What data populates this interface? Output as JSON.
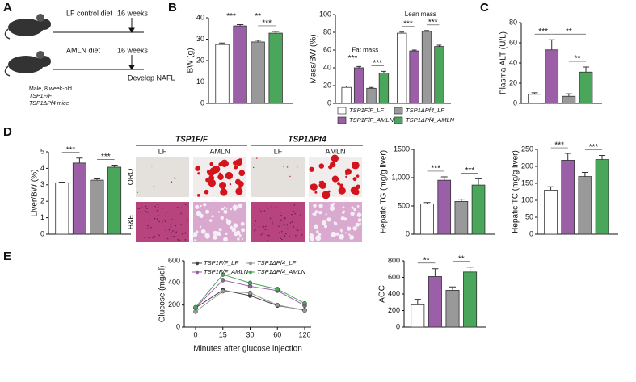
{
  "panel_labels": [
    "A",
    "B",
    "C",
    "D",
    "E"
  ],
  "schematic": {
    "lf_diet": "LF control diet",
    "lf_duration": "16 weeks",
    "amln_diet": "AMLN diet",
    "amln_duration": "16 weeks",
    "outcome": "Develop NAFL",
    "mice": [
      "Male, 8 week-old",
      "TSP1F/F",
      "TSP1ΔPf4 mice"
    ]
  },
  "histology": {
    "genotypes": [
      "TSP1F/F",
      "TSP1ΔPf4"
    ],
    "diets": [
      "LF",
      "AMLN",
      "LF",
      "AMLN"
    ],
    "stains": [
      "ORO",
      "H&E"
    ]
  },
  "chart_data": [
    {
      "type": "bar",
      "ylabel": "BW (g)",
      "ylim": [
        0,
        40
      ],
      "yticks": [
        0,
        10,
        20,
        30,
        40
      ],
      "series": [
        {
          "color": "#ffffff",
          "values": [
            27.5
          ],
          "errors": [
            0.7
          ]
        },
        {
          "color": "#9b5fa8",
          "values": [
            36.2
          ],
          "errors": [
            0.6
          ]
        },
        {
          "color": "#999999",
          "values": [
            28.7
          ],
          "errors": [
            0.8
          ]
        },
        {
          "color": "#4aa65a",
          "values": [
            32.8
          ],
          "errors": [
            0.8
          ]
        }
      ],
      "significance": [
        {
          "label": "***",
          "bars": [
            0,
            1
          ]
        },
        {
          "label": "**",
          "bars": [
            1,
            3
          ]
        },
        {
          "label": "***",
          "bars": [
            2,
            3
          ]
        }
      ]
    },
    {
      "type": "bar",
      "ylabel": "Mass/BW (%)",
      "ylim": [
        0,
        100
      ],
      "yticks": [
        0,
        20,
        40,
        60,
        80,
        100
      ],
      "categories": [
        "Fat mass",
        "Lean mass"
      ],
      "legend": "bottom",
      "series": [
        {
          "name": "TSP1F/F_LF",
          "color": "#ffffff",
          "values": [
            18,
            79
          ],
          "errors": [
            1.5,
            1.2
          ]
        },
        {
          "name": "TSP1F/F_AMLN",
          "color": "#9b5fa8",
          "values": [
            40,
            59
          ],
          "errors": [
            1.5,
            1
          ]
        },
        {
          "name": "TSP1ΔPf4_LF",
          "color": "#999999",
          "values": [
            17,
            81
          ],
          "errors": [
            1,
            1
          ]
        },
        {
          "name": "TSP1ΔPf4_AMLN",
          "color": "#4aa65a",
          "values": [
            34,
            64
          ],
          "errors": [
            2,
            1.5
          ]
        }
      ],
      "significance": [
        {
          "label": "***",
          "bars": [
            0,
            1
          ],
          "group": 0
        },
        {
          "label": "***",
          "bars": [
            2,
            3
          ],
          "group": 0
        },
        {
          "label": "***",
          "bars": [
            0,
            1
          ],
          "group": 1
        },
        {
          "label": "***",
          "bars": [
            2,
            3
          ],
          "group": 1
        }
      ]
    },
    {
      "type": "bar",
      "ylabel": "Plasma ALT (U/L)",
      "ylim": [
        0,
        80
      ],
      "yticks": [
        0,
        20,
        40,
        60,
        80
      ],
      "series": [
        {
          "color": "#ffffff",
          "values": [
            9
          ],
          "errors": [
            1.5
          ]
        },
        {
          "color": "#9b5fa8",
          "values": [
            53
          ],
          "errors": [
            10
          ]
        },
        {
          "color": "#999999",
          "values": [
            7
          ],
          "errors": [
            2.5
          ]
        },
        {
          "color": "#4aa65a",
          "values": [
            31
          ],
          "errors": [
            5
          ]
        }
      ],
      "significance": [
        {
          "label": "***",
          "bars": [
            0,
            1
          ]
        },
        {
          "label": "**",
          "bars": [
            1,
            3
          ]
        },
        {
          "label": "**",
          "bars": [
            2,
            3
          ]
        }
      ]
    },
    {
      "type": "bar",
      "ylabel": "Liver/BW (%)",
      "ylim": [
        0,
        5
      ],
      "yticks": [
        0,
        1,
        2,
        3,
        4,
        5
      ],
      "series": [
        {
          "color": "#ffffff",
          "values": [
            3.12
          ],
          "errors": [
            0.04
          ]
        },
        {
          "color": "#9b5fa8",
          "values": [
            4.32
          ],
          "errors": [
            0.3
          ]
        },
        {
          "color": "#999999",
          "values": [
            3.28
          ],
          "errors": [
            0.08
          ]
        },
        {
          "color": "#4aa65a",
          "values": [
            4.07
          ],
          "errors": [
            0.12
          ]
        }
      ],
      "significance": [
        {
          "label": "***",
          "bars": [
            0,
            1
          ]
        },
        {
          "label": "***",
          "bars": [
            2,
            3
          ]
        }
      ]
    },
    {
      "type": "bar",
      "ylabel": "Hepatic TG (mg/g liver)",
      "ylim": [
        0,
        1500
      ],
      "yticks": [
        0,
        500,
        {
          "value": 1000,
          "label": "1,000"
        },
        1500
      ],
      "series": [
        {
          "color": "#ffffff",
          "values": [
            535
          ],
          "errors": [
            25
          ]
        },
        {
          "color": "#9b5fa8",
          "values": [
            955
          ],
          "errors": [
            60
          ]
        },
        {
          "color": "#999999",
          "values": [
            580
          ],
          "errors": [
            40
          ]
        },
        {
          "color": "#4aa65a",
          "values": [
            870
          ],
          "errors": [
            110
          ]
        }
      ],
      "significance": [
        {
          "label": "***",
          "bars": [
            0,
            1
          ]
        },
        {
          "label": "***",
          "bars": [
            2,
            3
          ]
        }
      ]
    },
    {
      "type": "bar",
      "ylabel": "Hepatic TC (mg/g liver)",
      "ylim": [
        0,
        250
      ],
      "yticks": [
        0,
        50,
        100,
        150,
        200,
        250
      ],
      "series": [
        {
          "color": "#ffffff",
          "values": [
            130
          ],
          "errors": [
            10
          ]
        },
        {
          "color": "#9b5fa8",
          "values": [
            218
          ],
          "errors": [
            20
          ]
        },
        {
          "color": "#999999",
          "values": [
            170
          ],
          "errors": [
            12
          ]
        },
        {
          "color": "#4aa65a",
          "values": [
            220
          ],
          "errors": [
            12
          ]
        }
      ],
      "significance": [
        {
          "label": "***",
          "bars": [
            0,
            1
          ]
        },
        {
          "label": "***",
          "bars": [
            2,
            3
          ]
        }
      ]
    },
    {
      "type": "line",
      "ylabel": "Glucose (mg/dl)",
      "xlabel": "Minutes after glucose injection",
      "categories": [
        "0",
        "15",
        "30",
        "60",
        "120"
      ],
      "ylim": [
        0,
        600
      ],
      "yticks": [
        0,
        200,
        400,
        600
      ],
      "legend": "top",
      "series": [
        {
          "name": "TSP1F/F_LF",
          "color": "#444444",
          "values": [
            175,
            335,
            285,
            195,
            155
          ]
        },
        {
          "name": "TSP1F/F_AMLN",
          "color": "#9b5fa8",
          "values": [
            175,
            425,
            370,
            330,
            195
          ]
        },
        {
          "name": "TSP1ΔPf4_LF",
          "color": "#999999",
          "values": [
            140,
            325,
            310,
            200,
            150
          ]
        },
        {
          "name": "TSP1ΔPf4_AMLN",
          "color": "#4aa65a",
          "values": [
            180,
            475,
            400,
            345,
            215
          ]
        }
      ]
    },
    {
      "type": "bar",
      "ylabel": "AOC",
      "ylim": [
        0,
        800
      ],
      "yticks": [
        0,
        200,
        400,
        600,
        800
      ],
      "series": [
        {
          "color": "#ffffff",
          "values": [
            270
          ],
          "errors": [
            65
          ]
        },
        {
          "color": "#9b5fa8",
          "values": [
            610
          ],
          "errors": [
            95
          ]
        },
        {
          "color": "#999999",
          "values": [
            445
          ],
          "errors": [
            40
          ]
        },
        {
          "color": "#4aa65a",
          "values": [
            665
          ],
          "errors": [
            60
          ]
        }
      ],
      "significance": [
        {
          "label": "**",
          "bars": [
            0,
            1
          ]
        },
        {
          "label": "**",
          "bars": [
            2,
            3
          ]
        }
      ]
    }
  ]
}
